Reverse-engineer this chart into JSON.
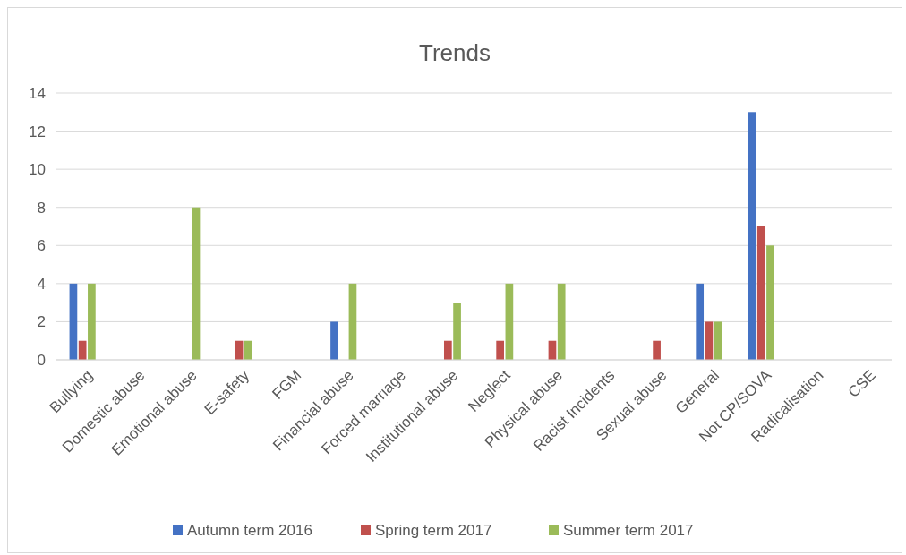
{
  "chart_data": {
    "type": "bar",
    "title": "Trends",
    "categories": [
      "Bullying",
      "Domestic abuse",
      "Emotional abuse",
      "E-safety",
      "FGM",
      "Financial abuse",
      "Forced marriage",
      "Institutional abuse",
      "Neglect",
      "Physical abuse",
      "Racist Incidents",
      "Sexual abuse",
      "General",
      "Not CP/SOVA",
      "Radicalisation",
      "CSE"
    ],
    "series": [
      {
        "name": "Autumn term 2016",
        "color": "#4472c4",
        "values": [
          4,
          0,
          0,
          0,
          0,
          2,
          0,
          0,
          0,
          0,
          0,
          0,
          4,
          13,
          0,
          0
        ]
      },
      {
        "name": "Spring term 2017",
        "color": "#c0504d",
        "values": [
          1,
          0,
          0,
          1,
          0,
          0,
          0,
          1,
          1,
          1,
          0,
          1,
          2,
          7,
          0,
          0
        ]
      },
      {
        "name": "Summer term 2017",
        "color": "#9bbb59",
        "values": [
          4,
          0,
          8,
          1,
          0,
          4,
          0,
          3,
          4,
          4,
          0,
          0,
          2,
          6,
          0,
          0
        ]
      }
    ],
    "ylim": [
      0,
      14
    ],
    "yticks": [
      0,
      2,
      4,
      6,
      8,
      10,
      12,
      14
    ],
    "grid": "y",
    "legend": "bottom"
  }
}
